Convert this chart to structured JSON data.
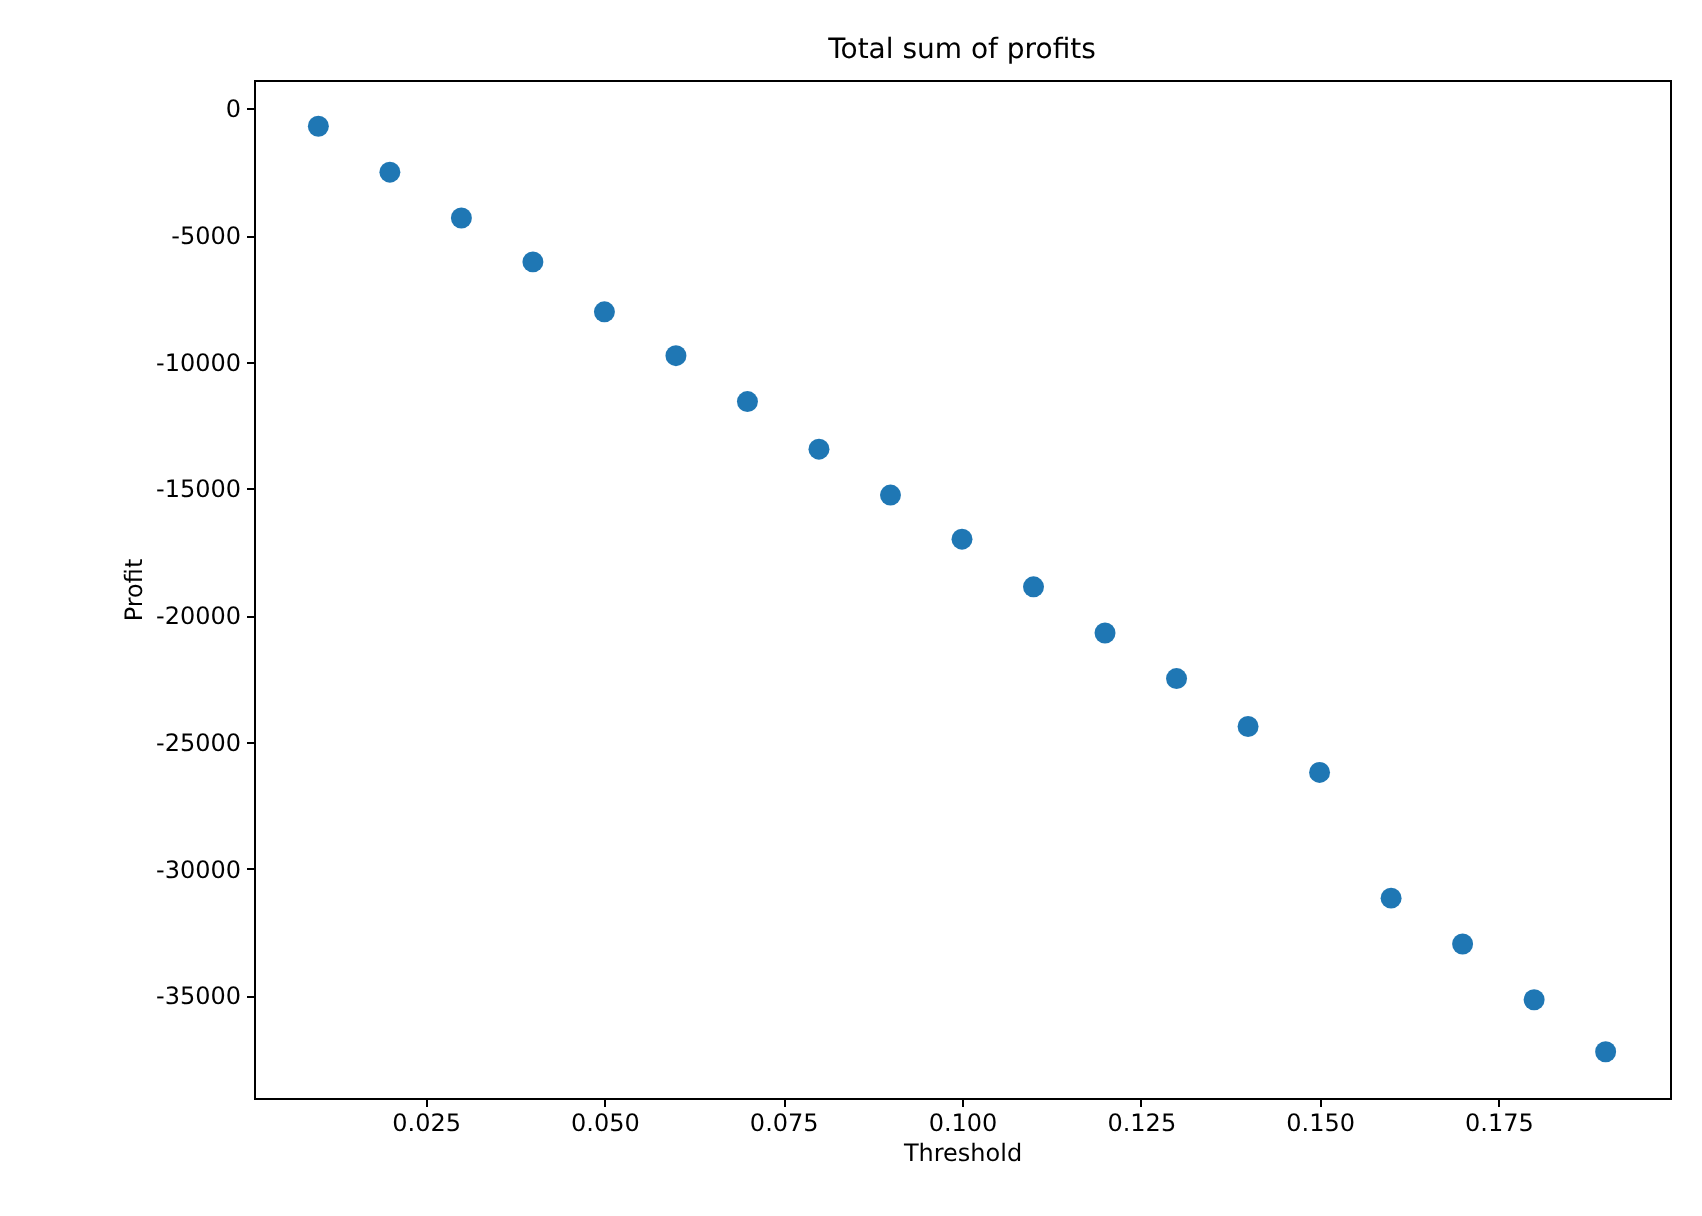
{
  "chart_data": {
    "type": "scatter",
    "title": "Total sum of profits",
    "xlabel": "Threshold",
    "ylabel": "Profit",
    "x": [
      0.01,
      0.02,
      0.03,
      0.04,
      0.05,
      0.06,
      0.07,
      0.08,
      0.09,
      0.1,
      0.11,
      0.12,
      0.13,
      0.14,
      0.15,
      0.16,
      0.17,
      0.18,
      0.19
    ],
    "series": [
      {
        "color": "#1f77b4",
        "values": [
          -710,
          -2520,
          -4330,
          -6060,
          -8030,
          -9760,
          -11570,
          -13450,
          -15260,
          -17000,
          -18880,
          -20700,
          -22500,
          -24390,
          -26200,
          -31160,
          -32970,
          -35170,
          -37220
        ]
      }
    ],
    "xlim": [
      0.001,
      0.199
    ],
    "xticks": [
      {
        "value": 0.025,
        "label": "0.025"
      },
      {
        "value": 0.05,
        "label": "0.050"
      },
      {
        "value": 0.075,
        "label": "0.075"
      },
      {
        "value": 0.1,
        "label": "0.100"
      },
      {
        "value": 0.125,
        "label": "0.125"
      },
      {
        "value": 0.15,
        "label": "0.150"
      },
      {
        "value": 0.175,
        "label": "0.175"
      }
    ],
    "ylim": [
      -39045,
      1115
    ],
    "yticks": [
      0,
      -5000,
      -10000,
      -15000,
      -20000,
      -25000,
      -30000,
      -35000
    ],
    "marker": "circle",
    "grid": false
  }
}
